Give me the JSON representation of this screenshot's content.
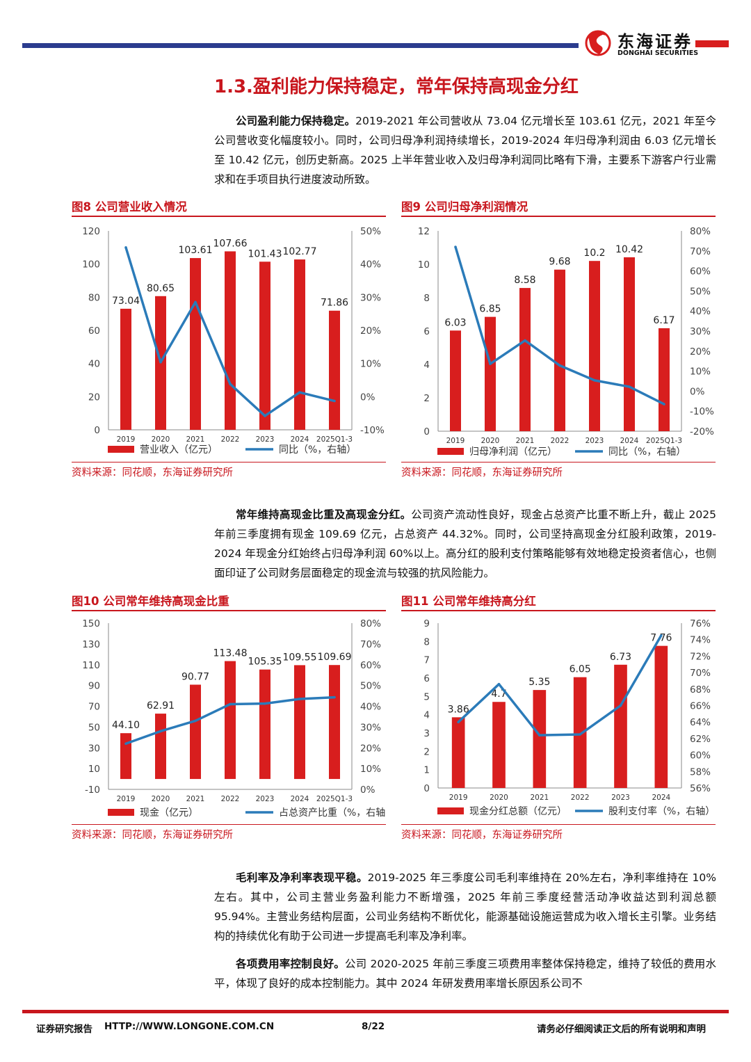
{
  "header": {
    "logo_cn": "东海证券",
    "logo_en": "DONGHAI SECURITIES",
    "colors": {
      "blue": "#2b3c8e",
      "red": "#d81e1e"
    }
  },
  "section_title": "1.3.盈利能力保持稳定，常年保持高现金分红",
  "para1": {
    "lead": "公司盈利能力保持稳定。",
    "text": "2019-2021 年公司营收从 73.04 亿元增长至 103.61 亿元，2021 年至今公司营收变化幅度较小。同时，公司归母净利润持续增长，2019-2024 年归母净利润由 6.03 亿元增长至 10.42 亿元，创历史新高。2025 上半年营业收入及归母净利润同比略有下滑，主要系下游客户行业需求和在手项目执行进度波动所致。"
  },
  "para2": {
    "lead": "常年维持高现金比重及高现金分红。",
    "text": "公司资产流动性良好，现金占总资产比重不断上升，截止 2025 年前三季度拥有现金 109.69 亿元，占总资产 44.32%。同时，公司坚持高现金分红股利政策，2019-2024 年现金分红始终占归母净利润 60%以上。高分红的股利支付策略能够有效地稳定投资者信心，也侧面印证了公司财务层面稳定的现金流与较强的抗风险能力。"
  },
  "para3": {
    "lead": "毛利率及净利率表现平稳。",
    "text": "2019-2025 年三季度公司毛利率维持在 20%左右，净利率维持在 10%左右。其中，公司主营业务盈利能力不断增强，2025 年前三季度经营活动净收益达到利润总额 95.94%。主营业务结构层面，公司业务结构不断优化，能源基础设施运营成为收入增长主引擎。业务结构的持续优化有助于公司进一步提高毛利率及净利率。"
  },
  "para4": {
    "lead": "各项费用率控制良好。",
    "text": "公司 2020-2025 年前三季度三项费用率整体保持稳定，维持了较低的费用水平，体现了良好的成本控制能力。其中 2024 年研发费用率增长原因系公司不"
  },
  "source_text": "资料来源：同花顺，东海证券研究所",
  "chart_data": [
    {
      "type": "bar",
      "figure_label": "图8  公司营业收入情况",
      "categories": [
        "2019",
        "2020",
        "2021",
        "2022",
        "2023",
        "2024",
        "2025Q1-3"
      ],
      "series": [
        {
          "name": "营业收入（亿元）",
          "kind": "bar",
          "axis": "left",
          "values": [
            73.04,
            80.65,
            103.61,
            107.66,
            101.43,
            102.77,
            71.86
          ],
          "labels": [
            "73.04",
            "80.65",
            "103.61",
            "107.66",
            "101.43",
            "102.77",
            "71.86"
          ]
        },
        {
          "name": "同比（%，右轴）",
          "kind": "line",
          "axis": "right",
          "values": [
            45,
            10.4,
            28.5,
            3.8,
            -5.8,
            1.3,
            -1.3
          ]
        }
      ],
      "left_axis": {
        "min": 0,
        "max": 120,
        "ticks": [
          "0",
          "20",
          "40",
          "60",
          "80",
          "100",
          "120"
        ]
      },
      "right_axis": {
        "min": -10,
        "max": 50,
        "ticks": [
          "-10%",
          "0%",
          "10%",
          "20%",
          "30%",
          "40%",
          "50%"
        ]
      },
      "legend": "bottom",
      "colors": {
        "bar": "#d81e1e",
        "line": "#2b7bb9"
      }
    },
    {
      "type": "bar",
      "figure_label": "图9  公司归母净利润情况",
      "categories": [
        "2019",
        "2020",
        "2021",
        "2022",
        "2023",
        "2024",
        "2025Q1-3"
      ],
      "series": [
        {
          "name": "归母净利润（亿元）",
          "kind": "bar",
          "axis": "left",
          "values": [
            6.03,
            6.85,
            8.58,
            9.68,
            10.2,
            10.42,
            6.17
          ],
          "labels": [
            "6.03",
            "6.85",
            "8.58",
            "9.68",
            "10.2",
            "10.42",
            "6.17"
          ]
        },
        {
          "name": "同比（%，右轴）",
          "kind": "line",
          "axis": "right",
          "values": [
            72,
            13.6,
            25.3,
            12.8,
            5.4,
            2.2,
            -6.5
          ]
        }
      ],
      "left_axis": {
        "min": 0,
        "max": 12,
        "ticks": [
          "0",
          "2",
          "4",
          "6",
          "8",
          "10",
          "12"
        ]
      },
      "right_axis": {
        "min": -20,
        "max": 80,
        "ticks": [
          "-20%",
          "-10%",
          "0%",
          "10%",
          "20%",
          "30%",
          "40%",
          "50%",
          "60%",
          "70%",
          "80%"
        ]
      },
      "legend": "bottom",
      "colors": {
        "bar": "#d81e1e",
        "line": "#2b7bb9"
      }
    },
    {
      "type": "bar",
      "figure_label": "图10  公司常年维持高现金比重",
      "categories": [
        "2019",
        "2020",
        "2021",
        "2022",
        "2023",
        "2024",
        "2025Q1-3"
      ],
      "series": [
        {
          "name": "现金（亿元）",
          "kind": "bar",
          "axis": "left",
          "values": [
            44.1,
            62.91,
            90.77,
            113.48,
            105.35,
            109.55,
            109.69
          ],
          "labels": [
            "44.10",
            "62.91",
            "90.77",
            "113.48",
            "105.35",
            "109.55",
            "109.69"
          ]
        },
        {
          "name": "占总资产比重（%，右轴）",
          "kind": "line",
          "axis": "right",
          "values": [
            22,
            28,
            33,
            41,
            41.3,
            43.5,
            44.32
          ]
        }
      ],
      "left_axis": {
        "min": -10,
        "max": 150,
        "ticks": [
          "-10",
          "10",
          "30",
          "50",
          "70",
          "90",
          "110",
          "130",
          "150"
        ]
      },
      "right_axis": {
        "min": 0,
        "max": 80,
        "ticks": [
          "0%",
          "10%",
          "20%",
          "30%",
          "40%",
          "50%",
          "60%",
          "70%",
          "80%"
        ]
      },
      "legend": "bottom",
      "colors": {
        "bar": "#d81e1e",
        "line": "#2b7bb9"
      }
    },
    {
      "type": "bar",
      "figure_label": "图11  公司常年维持高分红",
      "categories": [
        "2019",
        "2020",
        "2021",
        "2022",
        "2023",
        "2024"
      ],
      "series": [
        {
          "name": "现金分红总额（亿元）",
          "kind": "bar",
          "axis": "left",
          "values": [
            3.86,
            4.7,
            5.35,
            6.05,
            6.73,
            7.76
          ],
          "labels": [
            "3.86",
            "4.7",
            "5.35",
            "6.05",
            "6.73",
            "7.76"
          ]
        },
        {
          "name": "股利支付率（%，右轴）",
          "kind": "line",
          "axis": "right",
          "values": [
            64,
            68.6,
            62.4,
            62.5,
            66,
            74.5
          ]
        }
      ],
      "left_axis": {
        "min": 0,
        "max": 9,
        "ticks": [
          "0",
          "1",
          "2",
          "3",
          "4",
          "5",
          "6",
          "7",
          "8",
          "9"
        ]
      },
      "right_axis": {
        "min": 56,
        "max": 76,
        "ticks": [
          "56%",
          "58%",
          "60%",
          "62%",
          "64%",
          "66%",
          "68%",
          "70%",
          "72%",
          "74%",
          "76%"
        ]
      },
      "legend": "bottom",
      "colors": {
        "bar": "#d81e1e",
        "line": "#2b7bb9"
      }
    }
  ],
  "footer": {
    "left": "证券研究报告",
    "url": "HTTP://WWW.LONGONE.COM.CN",
    "page": "8/22",
    "right": "请务必仔细阅读正文后的所有说明和声明"
  }
}
